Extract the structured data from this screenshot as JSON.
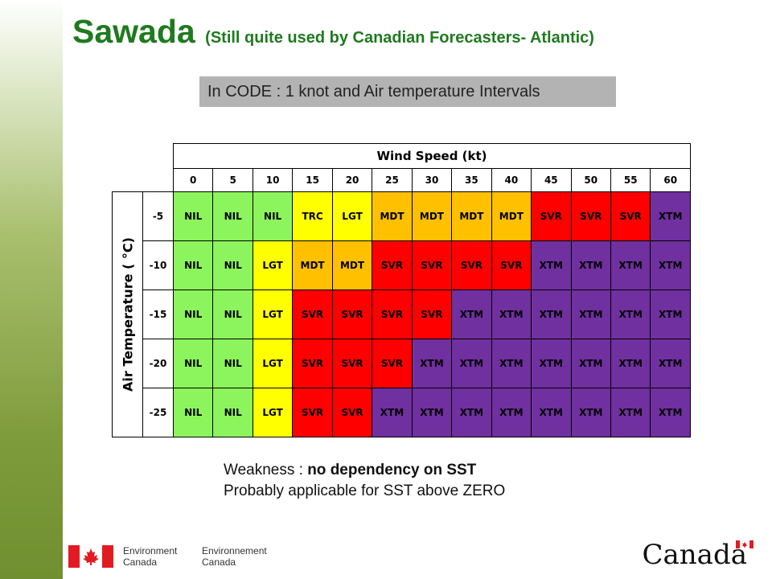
{
  "title": {
    "main": "Sawada",
    "subtitle": "(Still quite used by Canadian Forecasters- Atlantic)"
  },
  "code_box": "In CODE : 1 knot and Air temperature Intervals",
  "table": {
    "column_header": "Wind Speed (kt)",
    "row_header": "Air Temperature ( °C)",
    "wind_speeds": [
      "0",
      "5",
      "10",
      "15",
      "20",
      "25",
      "30",
      "35",
      "40",
      "45",
      "50",
      "55",
      "60"
    ],
    "rows": [
      {
        "temp": "-5",
        "cells": [
          "NIL",
          "NIL",
          "NIL",
          "TRC",
          "LGT",
          "MDT",
          "MDT",
          "MDT",
          "MDT",
          "SVR",
          "SVR",
          "SVR",
          "XTM"
        ]
      },
      {
        "temp": "-10",
        "cells": [
          "NIL",
          "NIL",
          "LGT",
          "MDT",
          "MDT",
          "SVR",
          "SVR",
          "SVR",
          "SVR",
          "XTM",
          "XTM",
          "XTM",
          "XTM"
        ]
      },
      {
        "temp": "-15",
        "cells": [
          "NIL",
          "NIL",
          "LGT",
          "SVR",
          "SVR",
          "SVR",
          "SVR",
          "XTM",
          "XTM",
          "XTM",
          "XTM",
          "XTM",
          "XTM"
        ]
      },
      {
        "temp": "-20",
        "cells": [
          "NIL",
          "NIL",
          "LGT",
          "SVR",
          "SVR",
          "SVR",
          "XTM",
          "XTM",
          "XTM",
          "XTM",
          "XTM",
          "XTM",
          "XTM"
        ]
      },
      {
        "temp": "-25",
        "cells": [
          "NIL",
          "NIL",
          "LGT",
          "SVR",
          "SVR",
          "XTM",
          "XTM",
          "XTM",
          "XTM",
          "XTM",
          "XTM",
          "XTM",
          "XTM"
        ]
      }
    ],
    "category_colors": {
      "NIL": "#8cf45c",
      "TRC": "#ffff00",
      "LGT": "#ffff00",
      "MDT": "#ffc000",
      "SVR": "#ff0000",
      "XTM": "#7030a0"
    }
  },
  "notes": {
    "weakness_label": "Weakness : ",
    "weakness_value": "no dependency on SST",
    "line2": "Probably applicable for SST above ZERO"
  },
  "footer": {
    "org_en_1": "Environment",
    "org_en_2": "Canada",
    "org_fr_1": "Environnement",
    "org_fr_2": "Canada",
    "wordmark": "Canada"
  }
}
